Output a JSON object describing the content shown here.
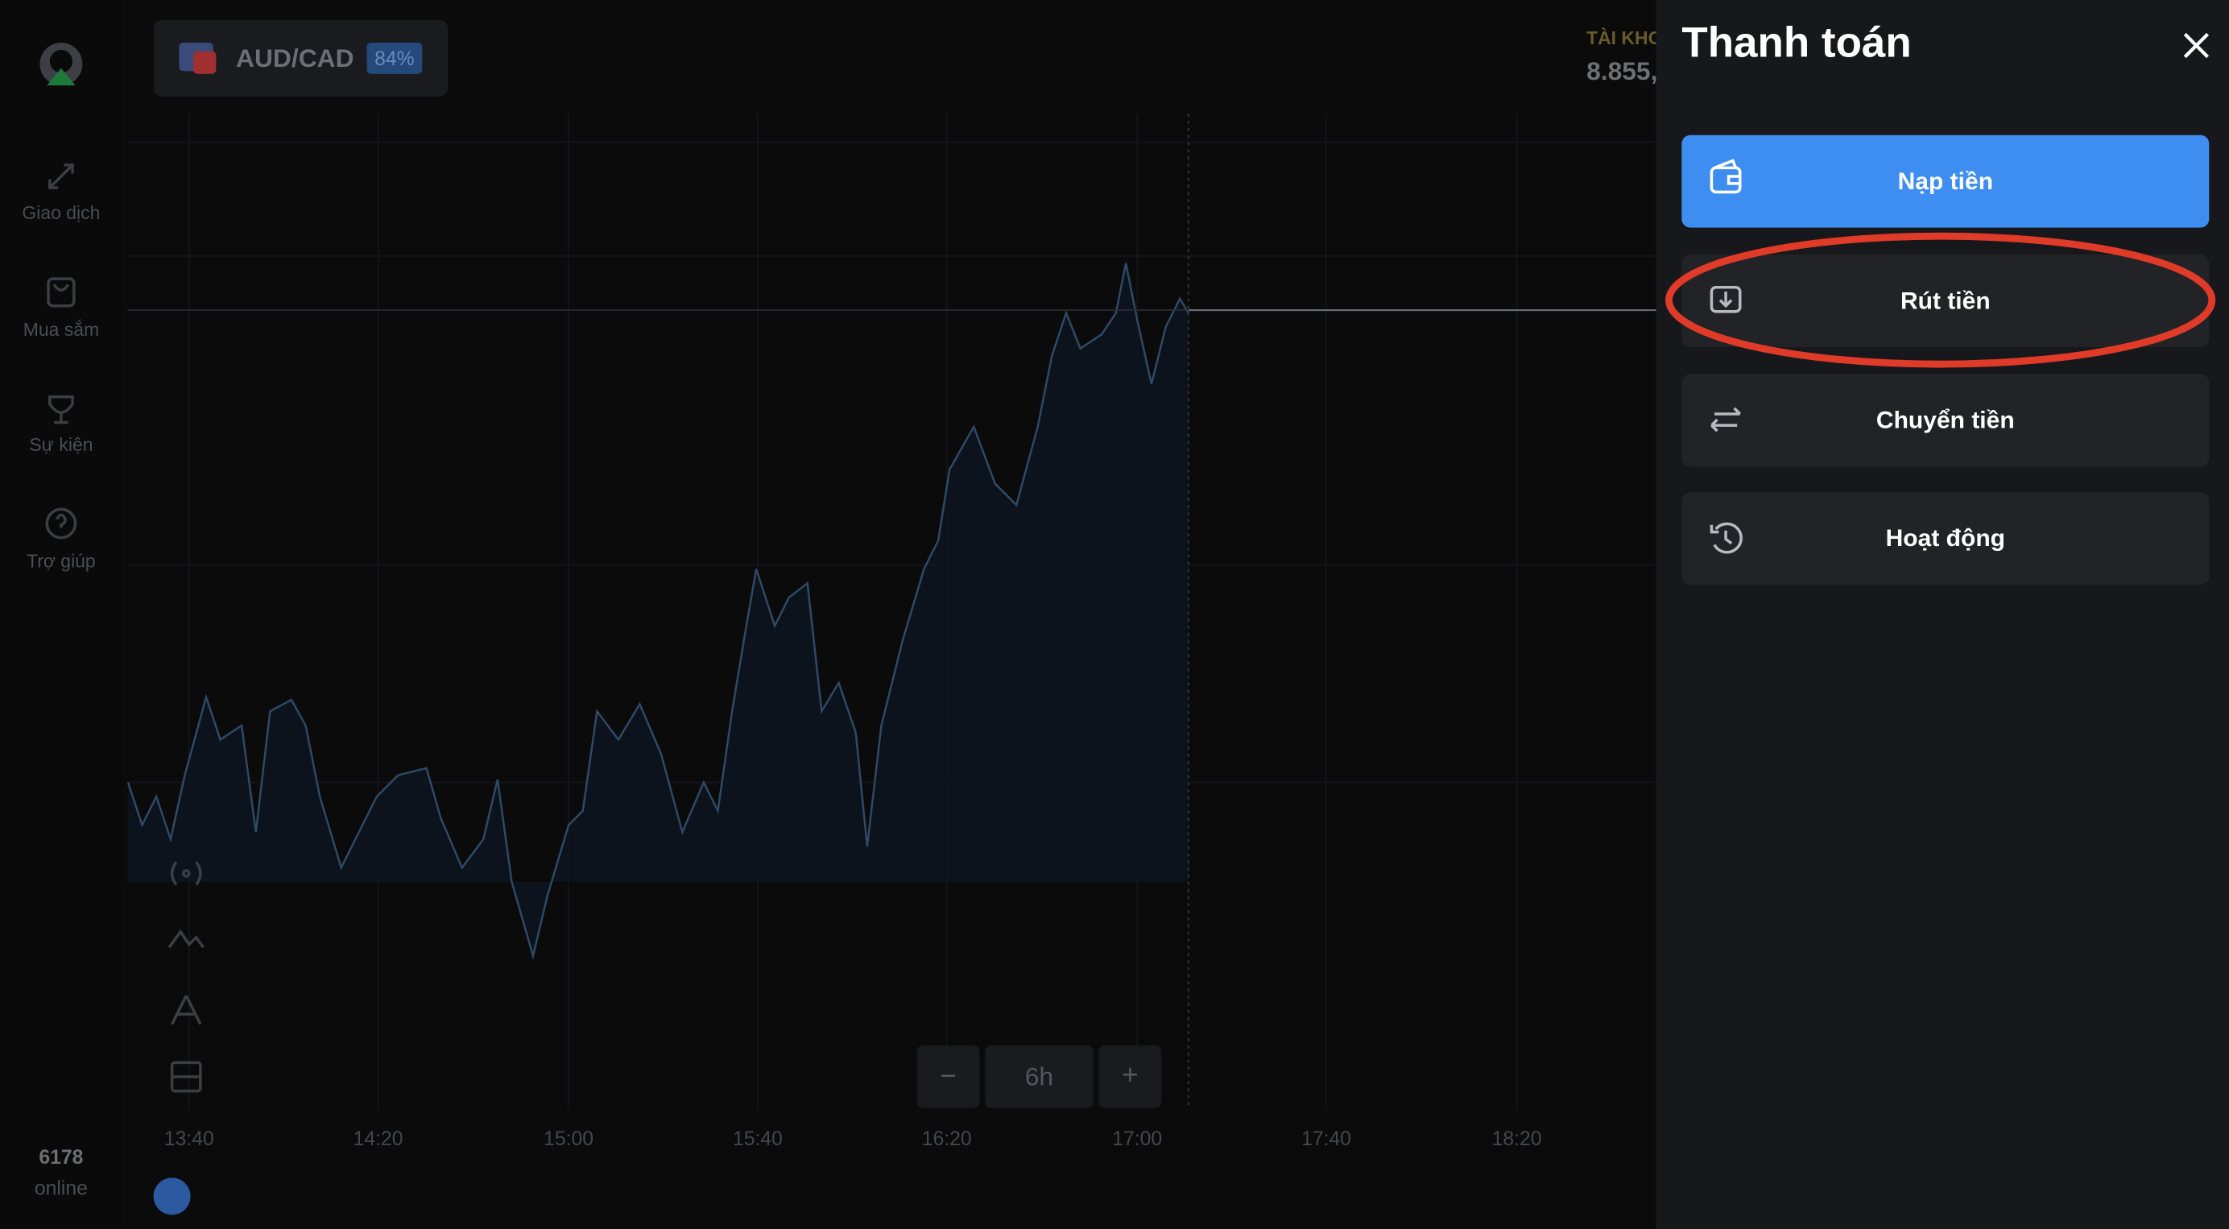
{
  "header": {
    "asset": "AUD/CAD",
    "payout": "84%",
    "account_label": "TÀI KHO",
    "balance": "8.855,"
  },
  "sidebar": {
    "items": [
      "Giao dịch",
      "Mua sắm",
      "Sự kiện",
      "Trợ giúp"
    ],
    "online_count": "6178",
    "online_label": "online"
  },
  "chart": {
    "time_labels": [
      "13:40",
      "14:20",
      "15:00",
      "15:40",
      "16:20",
      "17:00",
      "17:40",
      "18:20"
    ],
    "zoom": {
      "minus": "−",
      "value": "6h",
      "plus": "+"
    }
  },
  "panel": {
    "title": "Thanh toán",
    "buttons": [
      "Nạp tiền",
      "Rút tiền",
      "Chuyển tiền",
      "Hoạt động"
    ]
  }
}
